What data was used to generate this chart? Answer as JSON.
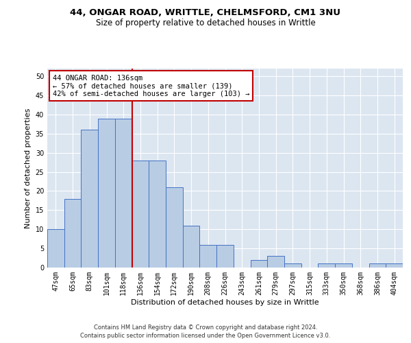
{
  "title1": "44, ONGAR ROAD, WRITTLE, CHELMSFORD, CM1 3NU",
  "title2": "Size of property relative to detached houses in Writtle",
  "xlabel": "Distribution of detached houses by size in Writtle",
  "ylabel": "Number of detached properties",
  "categories": [
    "47sqm",
    "65sqm",
    "83sqm",
    "101sqm",
    "118sqm",
    "136sqm",
    "154sqm",
    "172sqm",
    "190sqm",
    "208sqm",
    "226sqm",
    "243sqm",
    "261sqm",
    "279sqm",
    "297sqm",
    "315sqm",
    "333sqm",
    "350sqm",
    "368sqm",
    "386sqm",
    "404sqm"
  ],
  "values": [
    10,
    18,
    36,
    39,
    39,
    28,
    28,
    21,
    11,
    6,
    6,
    0,
    2,
    3,
    1,
    0,
    1,
    1,
    0,
    1,
    1
  ],
  "bar_color": "#b8cce4",
  "bar_edge_color": "#4472c4",
  "bg_color": "#dce6f1",
  "grid_color": "#ffffff",
  "vline_x_index": 5,
  "vline_color": "#c00000",
  "annotation_line1": "44 ONGAR ROAD: 136sqm",
  "annotation_line2": "← 57% of detached houses are smaller (139)",
  "annotation_line3": "42% of semi-detached houses are larger (103) →",
  "annotation_box_color": "#ffffff",
  "annotation_box_edge_color": "#c00000",
  "ylim": [
    0,
    52
  ],
  "yticks": [
    0,
    5,
    10,
    15,
    20,
    25,
    30,
    35,
    40,
    45,
    50
  ],
  "footer1": "Contains HM Land Registry data © Crown copyright and database right 2024.",
  "footer2": "Contains public sector information licensed under the Open Government Licence v3.0.",
  "title_fontsize": 9.5,
  "subtitle_fontsize": 8.5,
  "tick_fontsize": 7,
  "ylabel_fontsize": 8,
  "xlabel_fontsize": 8,
  "annot_fontsize": 7.5,
  "footer_fontsize": 6
}
